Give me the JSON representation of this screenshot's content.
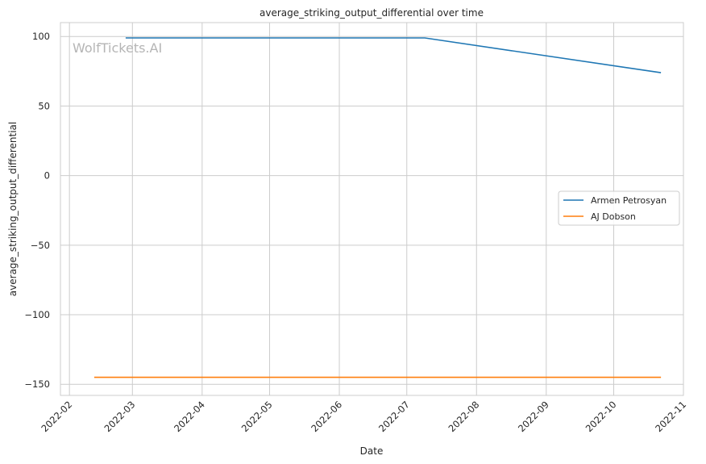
{
  "watermark": "WolfTickets.AI",
  "chart_data": {
    "type": "line",
    "title": "average_striking_output_differential over time",
    "xlabel": "Date",
    "ylabel": "average_striking_output_differential",
    "x_ticks": [
      "2022-02",
      "2022-03",
      "2022-04",
      "2022-05",
      "2022-06",
      "2022-07",
      "2022-08",
      "2022-09",
      "2022-10",
      "2022-11"
    ],
    "y_ticks": [
      100,
      50,
      0,
      -50,
      -100,
      -150
    ],
    "xlim": [
      "2022-01-28",
      "2022-11-01"
    ],
    "ylim": [
      -158,
      110
    ],
    "grid": true,
    "legend_position": "center-right",
    "series": [
      {
        "name": "Armen Petrosyan",
        "color": "#1f77b4",
        "x": [
          "2022-02-26",
          "2022-07-09",
          "2022-10-22"
        ],
        "y": [
          99,
          99,
          74
        ]
      },
      {
        "name": "AJ Dobson",
        "color": "#ff7f0e",
        "x": [
          "2022-02-12",
          "2022-10-22"
        ],
        "y": [
          -145,
          -145
        ]
      }
    ]
  }
}
